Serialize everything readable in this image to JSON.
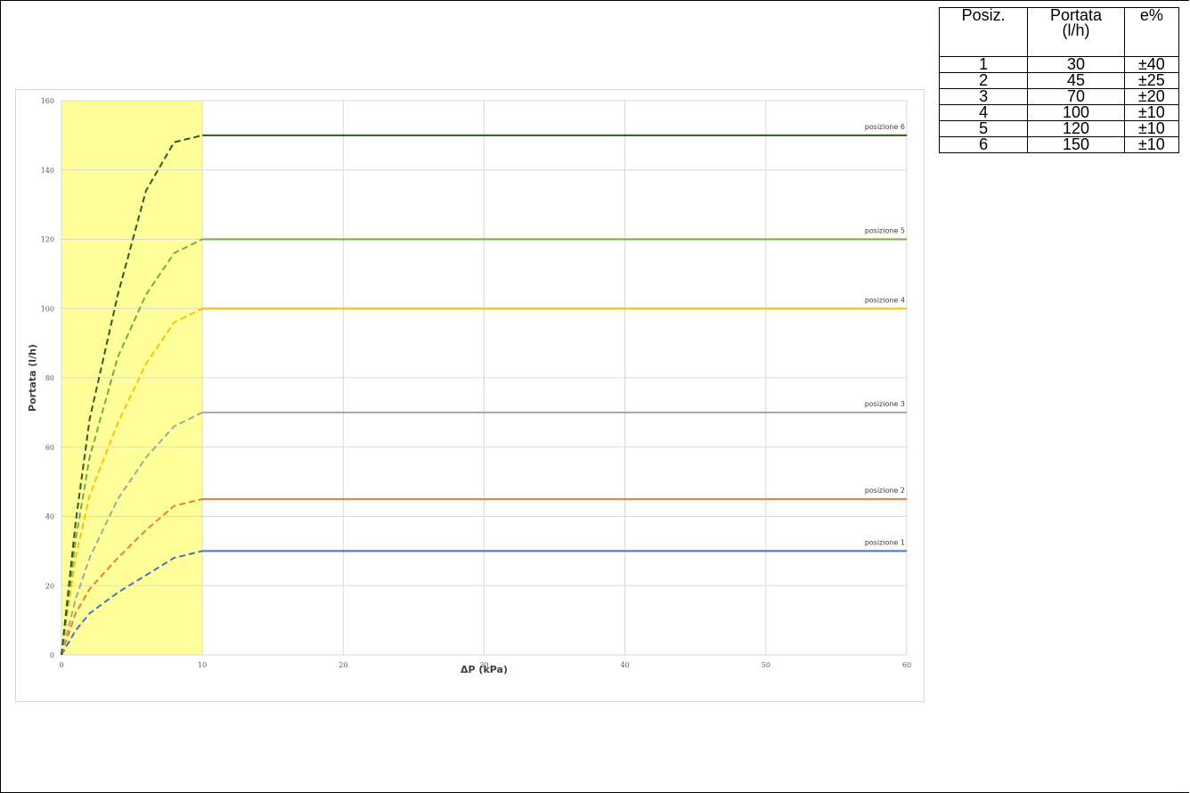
{
  "chart_data": {
    "type": "line",
    "title": "",
    "xlabel": "ΔP (kPa)",
    "ylabel": "Portata (l/h)",
    "xlim": [
      0,
      60
    ],
    "ylim": [
      0,
      160
    ],
    "x_ticks": [
      "0",
      "10",
      "20",
      "30",
      "40",
      "50",
      "60"
    ],
    "y_ticks": [
      "0",
      "20",
      "40",
      "60",
      "80",
      "100",
      "120",
      "140",
      "160"
    ],
    "grid": true,
    "highlight_region": {
      "x_from": 0,
      "x_to": 10,
      "color": "#ffff99"
    },
    "series": [
      {
        "name": "posizione 1",
        "color": "#4472c4",
        "flow": 30,
        "points": [
          [
            0,
            0
          ],
          [
            1,
            7
          ],
          [
            2,
            12
          ],
          [
            4,
            18
          ],
          [
            6,
            23
          ],
          [
            8,
            28
          ],
          [
            10,
            30
          ],
          [
            60,
            30
          ]
        ]
      },
      {
        "name": "posizione 2",
        "color": "#ed7d31",
        "flow": 45,
        "points": [
          [
            0,
            0
          ],
          [
            1,
            12
          ],
          [
            2,
            19
          ],
          [
            4,
            28
          ],
          [
            6,
            36
          ],
          [
            8,
            43
          ],
          [
            10,
            45
          ],
          [
            60,
            45
          ]
        ]
      },
      {
        "name": "posizione 3",
        "color": "#a5a5a5",
        "flow": 70,
        "points": [
          [
            0,
            0
          ],
          [
            1,
            16
          ],
          [
            2,
            28
          ],
          [
            4,
            45
          ],
          [
            6,
            57
          ],
          [
            8,
            66
          ],
          [
            10,
            70
          ],
          [
            60,
            70
          ]
        ]
      },
      {
        "name": "posizione 4",
        "color": "#ffc000",
        "flow": 100,
        "points": [
          [
            0,
            0
          ],
          [
            1,
            28
          ],
          [
            2,
            46
          ],
          [
            4,
            67
          ],
          [
            6,
            84
          ],
          [
            8,
            96
          ],
          [
            10,
            100
          ],
          [
            60,
            100
          ]
        ]
      },
      {
        "name": "posizione 5",
        "color": "#70ad47",
        "flow": 120,
        "points": [
          [
            0,
            0
          ],
          [
            1,
            33
          ],
          [
            2,
            57
          ],
          [
            4,
            86
          ],
          [
            6,
            104
          ],
          [
            8,
            116
          ],
          [
            10,
            120
          ],
          [
            60,
            120
          ]
        ]
      },
      {
        "name": "posizione 6",
        "color": "#375623",
        "flow": 150,
        "points": [
          [
            0,
            0
          ],
          [
            1,
            38
          ],
          [
            2,
            68
          ],
          [
            4,
            104
          ],
          [
            6,
            134
          ],
          [
            8,
            148
          ],
          [
            10,
            150
          ],
          [
            60,
            150
          ]
        ]
      }
    ]
  },
  "table": {
    "headers": {
      "pos": "Posiz.",
      "flow_line1": "Portata",
      "flow_line2": "(l/h)",
      "err": "e%"
    },
    "rows": [
      {
        "pos": "1",
        "flow": "30",
        "err": "±40"
      },
      {
        "pos": "2",
        "flow": "45",
        "err": "±25"
      },
      {
        "pos": "3",
        "flow": "70",
        "err": "±20"
      },
      {
        "pos": "4",
        "flow": "100",
        "err": "±10"
      },
      {
        "pos": "5",
        "flow": "120",
        "err": "±10"
      },
      {
        "pos": "6",
        "flow": "150",
        "err": "±10"
      }
    ]
  }
}
